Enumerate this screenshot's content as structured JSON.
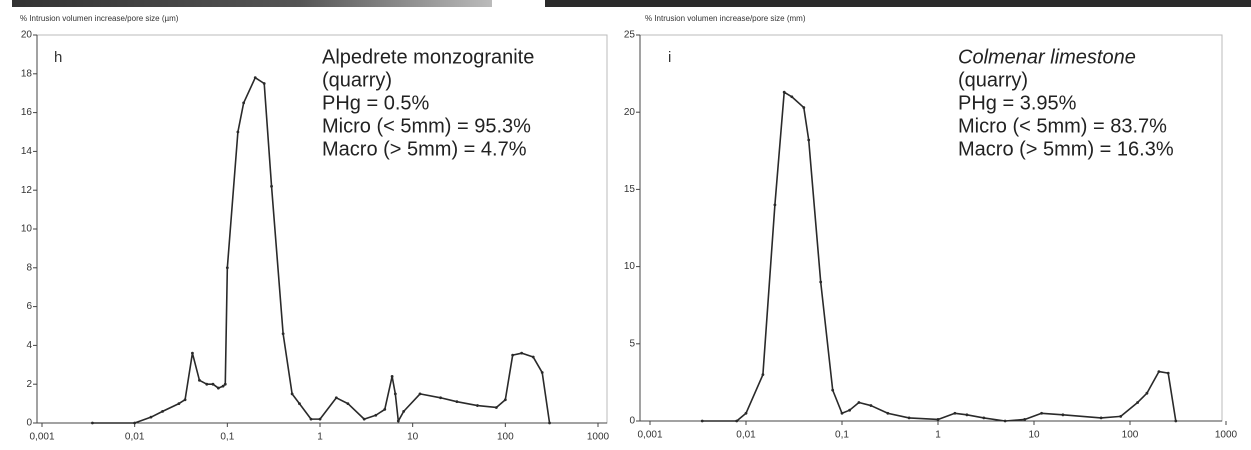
{
  "chart_data": [
    {
      "type": "line",
      "panel": "h",
      "y_label": "% Intrusion volumen increase/pore size (µm)",
      "annotations": [
        "Alpedrete monzogranite",
        "(quarry)",
        "PHg = 0.5%",
        "Micro (< 5mm) = 95.3%",
        "Macro (> 5mm) = 4.7%"
      ],
      "x_scale": "log",
      "xlim": [
        0.001,
        1000
      ],
      "xticks": [
        {
          "value": 0.001,
          "label": "0,001"
        },
        {
          "value": 0.01,
          "label": "0,01"
        },
        {
          "value": 0.1,
          "label": "0,1"
        },
        1,
        10,
        100,
        1000
      ],
      "ylim": [
        0,
        20
      ],
      "yticks": [
        0,
        2,
        4,
        6,
        8,
        10,
        12,
        14,
        16,
        18,
        20
      ],
      "x": [
        0.0035,
        0.01,
        0.015,
        0.02,
        0.03,
        0.035,
        0.042,
        0.05,
        0.06,
        0.07,
        0.08,
        0.09,
        0.095,
        0.1,
        0.13,
        0.15,
        0.2,
        0.25,
        0.3,
        0.4,
        0.5,
        0.6,
        0.8,
        1,
        1.5,
        2,
        3,
        4,
        5,
        6,
        6.5,
        7,
        8,
        12,
        20,
        30,
        50,
        80,
        100,
        120,
        150,
        200,
        250,
        300
      ],
      "series": [
        {
          "color": "#2a2a2a",
          "values": [
            0,
            0,
            0.3,
            0.6,
            1.0,
            1.2,
            3.6,
            2.2,
            2.0,
            2.0,
            1.8,
            1.9,
            2.0,
            8,
            15,
            16.5,
            17.8,
            17.5,
            12.2,
            4.6,
            1.5,
            1.0,
            0.2,
            0.2,
            1.3,
            1.0,
            0.2,
            0.4,
            0.7,
            2.4,
            1.5,
            0.1,
            0.6,
            1.5,
            1.3,
            1.1,
            0.9,
            0.8,
            1.2,
            3.5,
            3.6,
            3.4,
            2.6,
            0
          ]
        }
      ]
    },
    {
      "type": "line",
      "panel": "i",
      "y_label": "% Intrusion volumen increase/pore size (mm)",
      "annotations": [
        "Colmenar limestone",
        "(quarry)",
        "PHg = 3.95%",
        "Micro (< 5mm) = 83.7%",
        "Macro (> 5mm) = 16.3%"
      ],
      "x_scale": "log",
      "xlim": [
        0.001,
        1000
      ],
      "xticks": [
        {
          "value": 0.001,
          "label": "0,001"
        },
        {
          "value": 0.01,
          "label": "0,01"
        },
        {
          "value": 0.1,
          "label": "0,1"
        },
        1,
        10,
        100,
        1000
      ],
      "ylim": [
        0,
        25
      ],
      "yticks": [
        0,
        5,
        10,
        15,
        20,
        25
      ],
      "x": [
        0.0035,
        0.008,
        0.01,
        0.015,
        0.02,
        0.025,
        0.03,
        0.04,
        0.045,
        0.06,
        0.08,
        0.1,
        0.12,
        0.15,
        0.2,
        0.3,
        0.5,
        1,
        1.5,
        2,
        3,
        5,
        8,
        12,
        20,
        50,
        80,
        120,
        150,
        200,
        250,
        300
      ],
      "series": [
        {
          "color": "#2a2a2a",
          "values": [
            0,
            0,
            0.5,
            3,
            14,
            21.3,
            21,
            20.3,
            18.2,
            9,
            2,
            0.5,
            0.7,
            1.2,
            1.0,
            0.5,
            0.2,
            0.1,
            0.5,
            0.4,
            0.2,
            0.0,
            0.1,
            0.5,
            0.4,
            0.2,
            0.3,
            1.2,
            1.8,
            3.2,
            3.1,
            0
          ]
        }
      ]
    }
  ]
}
